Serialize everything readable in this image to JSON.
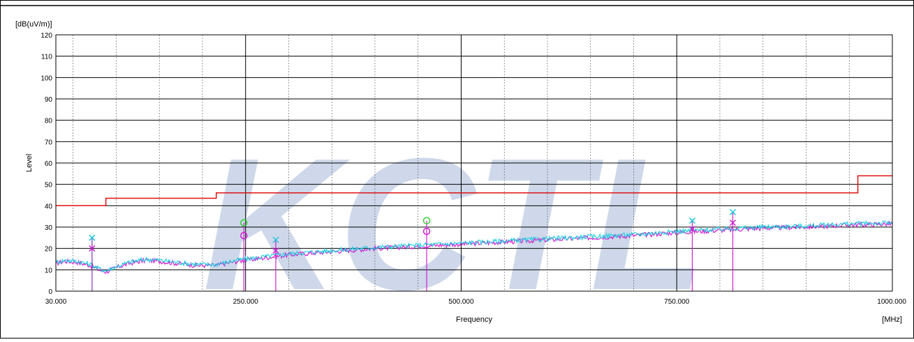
{
  "chart_data": {
    "type": "line",
    "ylabel_top": "[dB(uV/m)]",
    "ylabel": "Level",
    "xlabel": "Frequency",
    "xunit": "[MHz]",
    "watermark": "KCTL",
    "xlim": [
      30,
      1000
    ],
    "ylim": [
      0,
      120
    ],
    "x_ticks": [
      {
        "value": 30,
        "label": "30.000"
      },
      {
        "value": 250,
        "label": "250.000"
      },
      {
        "value": 500,
        "label": "500.000"
      },
      {
        "value": 750,
        "label": "750.000"
      },
      {
        "value": 1000,
        "label": "1000.000"
      }
    ],
    "y_ticks": [
      0,
      10,
      20,
      30,
      40,
      50,
      60,
      70,
      80,
      90,
      100,
      110,
      120
    ],
    "y_tick_labels": [
      "0",
      "10",
      "20",
      "30",
      "40",
      "50",
      "60",
      "70",
      "80",
      "90",
      "100",
      "110",
      "120"
    ],
    "x_minor_step": 50,
    "grid": true,
    "limit_line": {
      "color": "#e01010",
      "points": [
        [
          30,
          40
        ],
        [
          88,
          40
        ],
        [
          88,
          43.5
        ],
        [
          216,
          43.5
        ],
        [
          216,
          46
        ],
        [
          960,
          46
        ],
        [
          960,
          54
        ],
        [
          1000,
          54
        ]
      ]
    },
    "series": [
      {
        "color": "#d020d0",
        "points": [
          [
            30,
            13
          ],
          [
            40,
            14
          ],
          [
            55,
            13.5
          ],
          [
            70,
            12
          ],
          [
            80,
            10
          ],
          [
            88,
            9
          ],
          [
            100,
            11
          ],
          [
            115,
            13
          ],
          [
            135,
            14.5
          ],
          [
            150,
            14
          ],
          [
            170,
            13
          ],
          [
            195,
            12
          ],
          [
            215,
            12
          ],
          [
            240,
            14
          ],
          [
            260,
            15
          ],
          [
            300,
            17
          ],
          [
            350,
            18.5
          ],
          [
            400,
            20
          ],
          [
            450,
            21
          ],
          [
            500,
            22
          ],
          [
            550,
            23
          ],
          [
            600,
            24
          ],
          [
            650,
            25
          ],
          [
            700,
            26
          ],
          [
            750,
            27.5
          ],
          [
            800,
            28.5
          ],
          [
            850,
            29.5
          ],
          [
            900,
            30
          ],
          [
            950,
            31
          ],
          [
            1000,
            31.5
          ]
        ]
      },
      {
        "color": "#20d0e0",
        "points": [
          [
            30,
            13.5
          ],
          [
            40,
            14.5
          ],
          [
            55,
            14
          ],
          [
            70,
            12.5
          ],
          [
            80,
            10.5
          ],
          [
            88,
            9.5
          ],
          [
            100,
            11.5
          ],
          [
            115,
            13.5
          ],
          [
            135,
            15
          ],
          [
            150,
            14.5
          ],
          [
            170,
            13.5
          ],
          [
            195,
            12.5
          ],
          [
            215,
            12.5
          ],
          [
            240,
            14.5
          ],
          [
            260,
            15.5
          ],
          [
            300,
            17.5
          ],
          [
            350,
            19
          ],
          [
            400,
            20.5
          ],
          [
            450,
            21.5
          ],
          [
            500,
            22.5
          ],
          [
            550,
            23.5
          ],
          [
            600,
            24.5
          ],
          [
            650,
            25.5
          ],
          [
            700,
            26.5
          ],
          [
            750,
            28
          ],
          [
            800,
            29
          ],
          [
            850,
            30
          ],
          [
            900,
            30.5
          ],
          [
            950,
            31.5
          ],
          [
            1000,
            32
          ]
        ]
      }
    ],
    "markers": [
      {
        "x": 72,
        "peak": 25,
        "qp": 20,
        "peak_type": "x",
        "qp_type": "x",
        "stem": "#8030c0"
      },
      {
        "x": 248,
        "peak": 32,
        "qp": 26,
        "peak_type": "o",
        "qp_type": "o",
        "stem": "#d020d0"
      },
      {
        "x": 285,
        "peak": 24,
        "qp": 19,
        "peak_type": "x",
        "qp_type": "x",
        "stem": "#d020d0"
      },
      {
        "x": 460,
        "peak": 33,
        "qp": 28,
        "peak_type": "o",
        "qp_type": "o",
        "stem": "#d020d0"
      },
      {
        "x": 768,
        "peak": 33,
        "qp": 29,
        "peak_type": "x",
        "qp_type": "x",
        "stem": "#d020d0"
      },
      {
        "x": 815,
        "peak": 37,
        "qp": 32,
        "peak_type": "x",
        "qp_type": "x",
        "stem": "#d020d0"
      }
    ],
    "marker_colors": {
      "peak_x": "#20c8d8",
      "qp_x": "#d020d0",
      "peak_o": "#30d030",
      "qp_o": "#d020d0"
    }
  }
}
